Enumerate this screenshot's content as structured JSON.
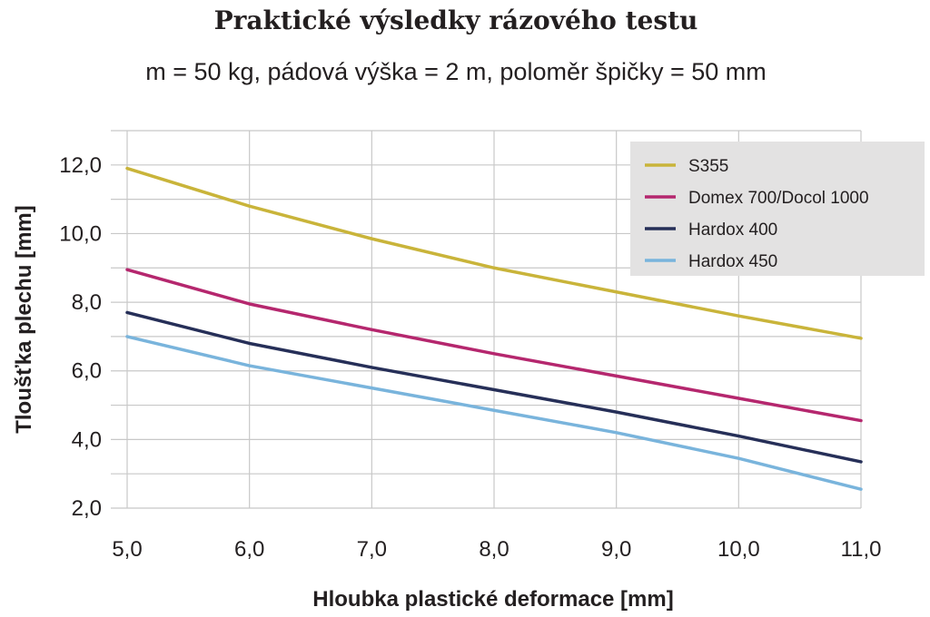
{
  "chart_data": {
    "type": "line",
    "title": "Praktické výsledky rázového testu",
    "subtitle": "m = 50 kg, pádová výška = 2 m, poloměr špičky = 50 mm",
    "xlabel": "Hloubka plastické deformace [mm]",
    "ylabel": "Tloušťka plechu [mm]",
    "xlim": [
      5,
      11
    ],
    "ylim": [
      2,
      13
    ],
    "x_ticks": [
      "5,0",
      "6,0",
      "7,0",
      "8,0",
      "9,0",
      "10,0",
      "11,0"
    ],
    "x_tick_values": [
      5,
      6,
      7,
      8,
      9,
      10,
      11
    ],
    "y_ticks": [
      "2,0",
      "4,0",
      "6,0",
      "8,0",
      "10,0",
      "12,0"
    ],
    "y_tick_values": [
      2,
      4,
      6,
      8,
      10,
      12
    ],
    "grid": true,
    "legend_position": "top-right",
    "x": [
      5,
      6,
      7,
      8,
      9,
      10,
      11
    ],
    "series": [
      {
        "name": "S355",
        "color": "#c9b43a",
        "values": [
          11.9,
          10.8,
          9.85,
          9.0,
          8.3,
          7.6,
          6.95
        ]
      },
      {
        "name": "Domex 700/Docol 1000",
        "color": "#b5276e",
        "values": [
          8.95,
          7.95,
          7.2,
          6.5,
          5.85,
          5.2,
          4.55
        ]
      },
      {
        "name": "Hardox 400",
        "color": "#262f58",
        "values": [
          7.7,
          6.8,
          6.1,
          5.45,
          4.8,
          4.1,
          3.35
        ]
      },
      {
        "name": "Hardox 450",
        "color": "#79b4dc",
        "values": [
          7.0,
          6.15,
          5.5,
          4.85,
          4.2,
          3.45,
          2.55
        ]
      }
    ]
  }
}
